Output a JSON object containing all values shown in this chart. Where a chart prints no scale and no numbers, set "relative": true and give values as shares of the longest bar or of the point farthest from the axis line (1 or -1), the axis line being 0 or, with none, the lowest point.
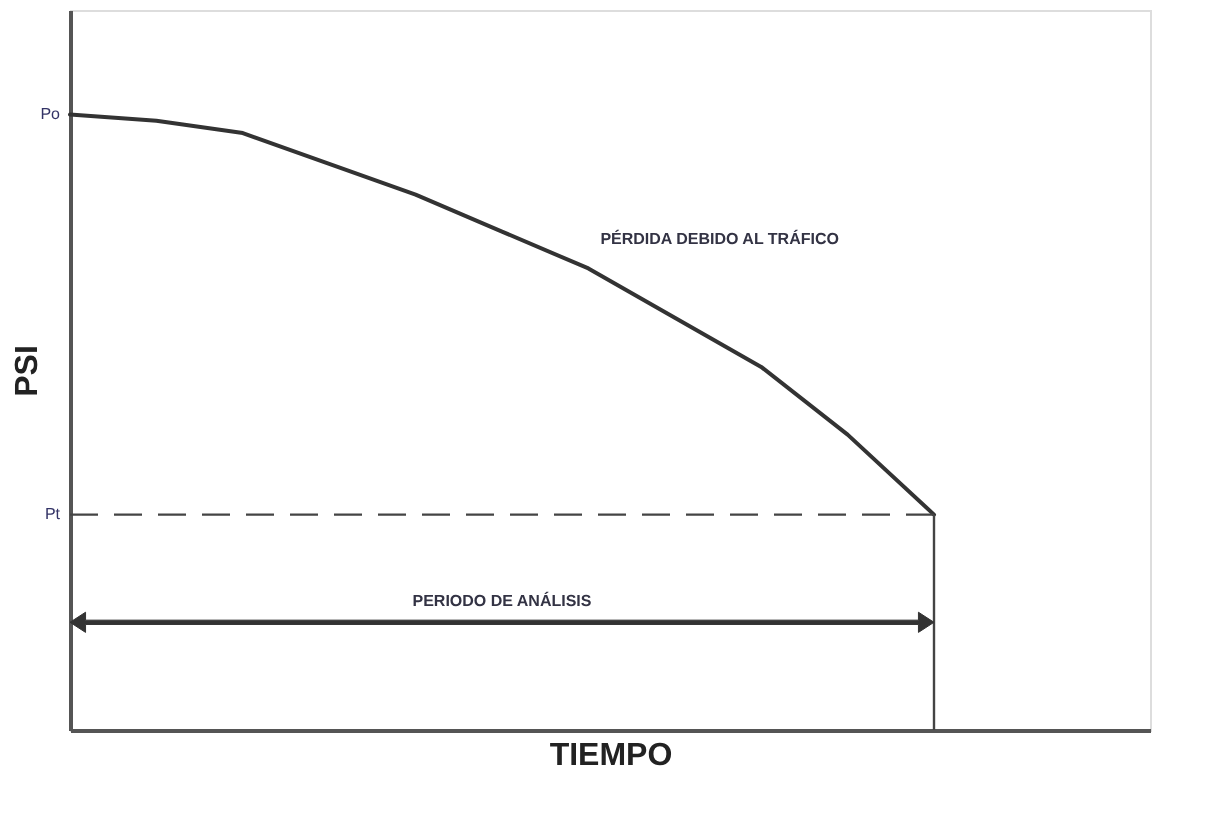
{
  "chart_data": {
    "type": "line",
    "relative": true,
    "xlabel": "TIEMPO",
    "ylabel": "PSI",
    "categories": [
      null,
      null,
      null,
      null,
      null,
      null,
      null,
      null,
      null,
      null,
      null
    ],
    "series": [
      {
        "color": "#333333",
        "values": [
          1.0,
          0.99,
          0.97,
          0.92,
          0.87,
          0.81,
          0.75,
          0.67,
          0.59,
          0.48,
          0.35
        ]
      }
    ],
    "ref_lines": [
      {
        "axis": "y",
        "value": 0.35,
        "label": "Pt",
        "line_style": "dashed",
        "color": "#444444"
      }
    ],
    "annotations": [
      "Po",
      "PÉRDIDA DEBIDO AL TRÁFICO",
      "PERIODO DE ANÁLISIS"
    ],
    "marker": "none",
    "line_style": "solid",
    "grid": false
  }
}
